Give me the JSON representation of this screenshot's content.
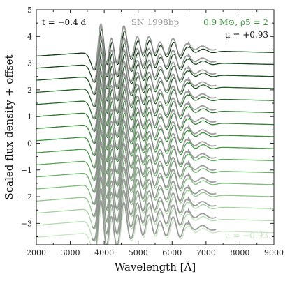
{
  "chart_data": {
    "type": "line",
    "title": "",
    "xlabel": "Wavelength [Å]",
    "ylabel": "Scaled flux density + offset",
    "xlim": [
      2000,
      9000
    ],
    "ylim": [
      -3.8,
      5
    ],
    "xticks": [
      2000,
      3000,
      4000,
      5000,
      6000,
      7000,
      8000,
      9000
    ],
    "yticks": [
      -3,
      -2,
      -1,
      0,
      1,
      2,
      3,
      4,
      5
    ],
    "grid": false,
    "annotations": {
      "epoch": "t = −0.4 d",
      "observed": "SN 1998bp",
      "model": "0.9 M⊙, ρ5 = 2",
      "mu_top": "μ = +0.93",
      "mu_bottom": "μ = −0.93"
    },
    "observed_color": "#8c8c8c",
    "model_colors": {
      "top": "#0e3b12",
      "mid": "#3a9a3a",
      "bottom": "#c6e6c0"
    },
    "observed_range": [
      3650,
      7300
    ],
    "model_range": [
      2000,
      9000
    ],
    "series_offsets": [
      3.4,
      2.95,
      2.5,
      2.05,
      1.6,
      1.15,
      0.7,
      0.25,
      -0.2,
      -0.65,
      -1.1,
      -1.55,
      -2.0,
      -2.45,
      -2.9,
      -3.35
    ]
  }
}
